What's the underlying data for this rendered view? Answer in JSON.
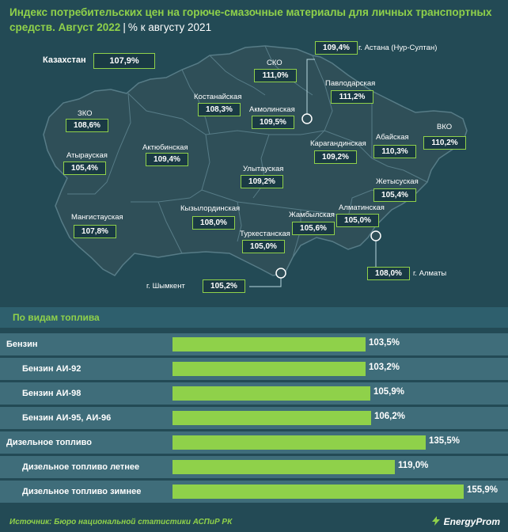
{
  "header": {
    "title_line1": "Индекс потребительских цен на горюче-смазочные материалы для личных транспортных",
    "title_line2_bold": "средств. Август 2022",
    "separator": "|",
    "title_line2_unit": "% к августу 2021"
  },
  "kazakhstan": {
    "label": "Казахстан",
    "value": "107,9%"
  },
  "regions": [
    {
      "name": "СКО",
      "value": "111,0%"
    },
    {
      "name": "г. Астана (Нур-Султан)",
      "value": "109,4%"
    },
    {
      "name": "Павлодарская",
      "value": "111,2%"
    },
    {
      "name": "Костанайская",
      "value": "108,3%"
    },
    {
      "name": "Акмолинская",
      "value": "109,5%"
    },
    {
      "name": "ЗКО",
      "value": "108,6%"
    },
    {
      "name": "ВКО",
      "value": "110,2%"
    },
    {
      "name": "Абайская",
      "value": "110,3%"
    },
    {
      "name": "Атырауская",
      "value": "105,4%"
    },
    {
      "name": "Актюбинская",
      "value": "109,4%"
    },
    {
      "name": "Карагандинская",
      "value": "109,2%"
    },
    {
      "name": "Улытауская",
      "value": "109,2%"
    },
    {
      "name": "Жетысуская",
      "value": "105,4%"
    },
    {
      "name": "Мангистауская",
      "value": "107,8%"
    },
    {
      "name": "Кызылординская",
      "value": "108,0%"
    },
    {
      "name": "Алматинская",
      "value": "105,0%"
    },
    {
      "name": "Жамбылская",
      "value": "105,6%"
    },
    {
      "name": "Туркестанская",
      "value": "105,0%"
    },
    {
      "name": "г. Алматы",
      "value": "108,0%"
    },
    {
      "name": "г. Шымкент",
      "value": "105,2%"
    }
  ],
  "fuel": {
    "title": "По видам топлива",
    "items": [
      {
        "label": "Бензин",
        "value": 103.5,
        "value_label": "103,5%",
        "level": "main"
      },
      {
        "label": "Бензин АИ-92",
        "value": 103.2,
        "value_label": "103,2%",
        "level": "sub"
      },
      {
        "label": "Бензин АИ-98",
        "value": 105.9,
        "value_label": "105,9%",
        "level": "sub"
      },
      {
        "label": "Бензин АИ-95, АИ-96",
        "value": 106.2,
        "value_label": "106,2%",
        "level": "sub"
      },
      {
        "label": "Дизельное топливо",
        "value": 135.5,
        "value_label": "135,5%",
        "level": "main"
      },
      {
        "label": "Дизельное топливо летнее",
        "value": 119.0,
        "value_label": "119,0%",
        "level": "sub"
      },
      {
        "label": "Дизельное топливо зимнее",
        "value": 155.9,
        "value_label": "155,9%",
        "level": "sub"
      }
    ]
  },
  "footer": {
    "source": "Источник: Бюро национальной статистики АСПиР РК",
    "brand": "EnergyProm"
  },
  "colors": {
    "accent": "#8fd14a",
    "background": "#234a55",
    "row": "#3f6d7a",
    "map_fill": "#2f4f58"
  }
}
